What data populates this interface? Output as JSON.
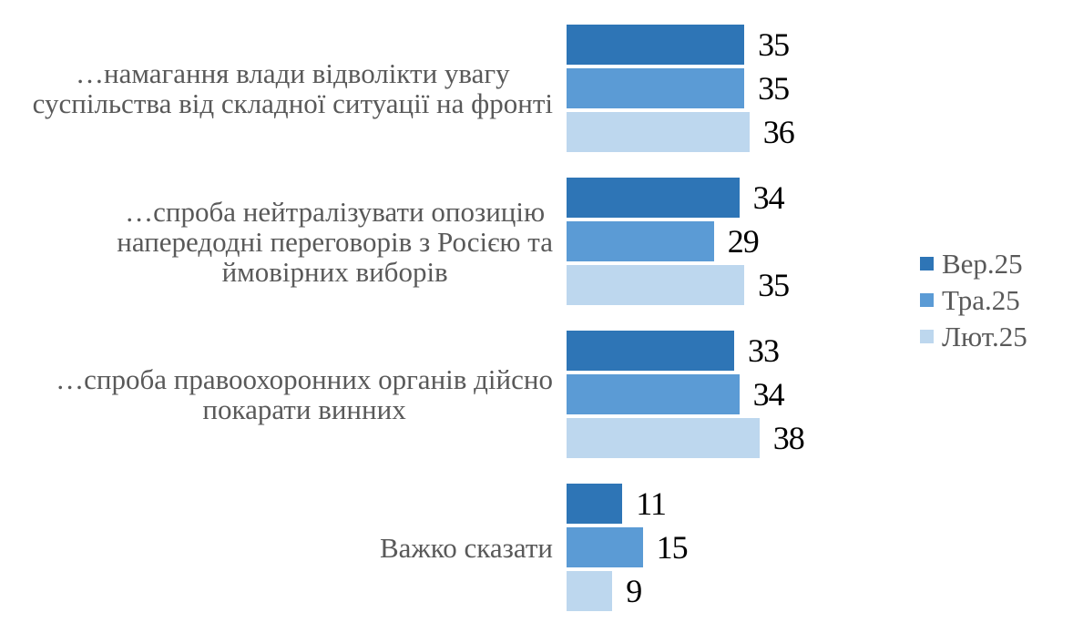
{
  "chart_data": {
    "type": "bar",
    "orientation": "horizontal",
    "categories": [
      "…намагання влади відволікти увагу\nсуспільства від складної ситуації на фронті",
      "…спроба нейтралізувати опозицію\nнапередодні переговорів з Росією та\nймовірних виборів",
      "…спроба правоохоронних органів дійсно\nпокарати винних",
      "Важко сказати"
    ],
    "series": [
      {
        "name": "Вер.25",
        "color": "#2E75B6",
        "values": [
          35,
          34,
          33,
          11
        ]
      },
      {
        "name": "Тра.25",
        "color": "#5B9BD5",
        "values": [
          35,
          29,
          34,
          15
        ]
      },
      {
        "name": "Лют.25",
        "color": "#BDD7EE",
        "values": [
          36,
          35,
          38,
          9
        ]
      }
    ],
    "xlim": [
      0,
      40
    ],
    "grid": false,
    "value_labels_shown": true,
    "legend_position": "right"
  },
  "colors": {
    "series_dark_blue": "#2E75B6",
    "series_medium_blue": "#5B9BD5",
    "series_light_blue": "#BDD7EE",
    "category_text": "#595959",
    "legend_text": "#595959",
    "value_text": "#000000",
    "background": "#FFFFFF"
  }
}
